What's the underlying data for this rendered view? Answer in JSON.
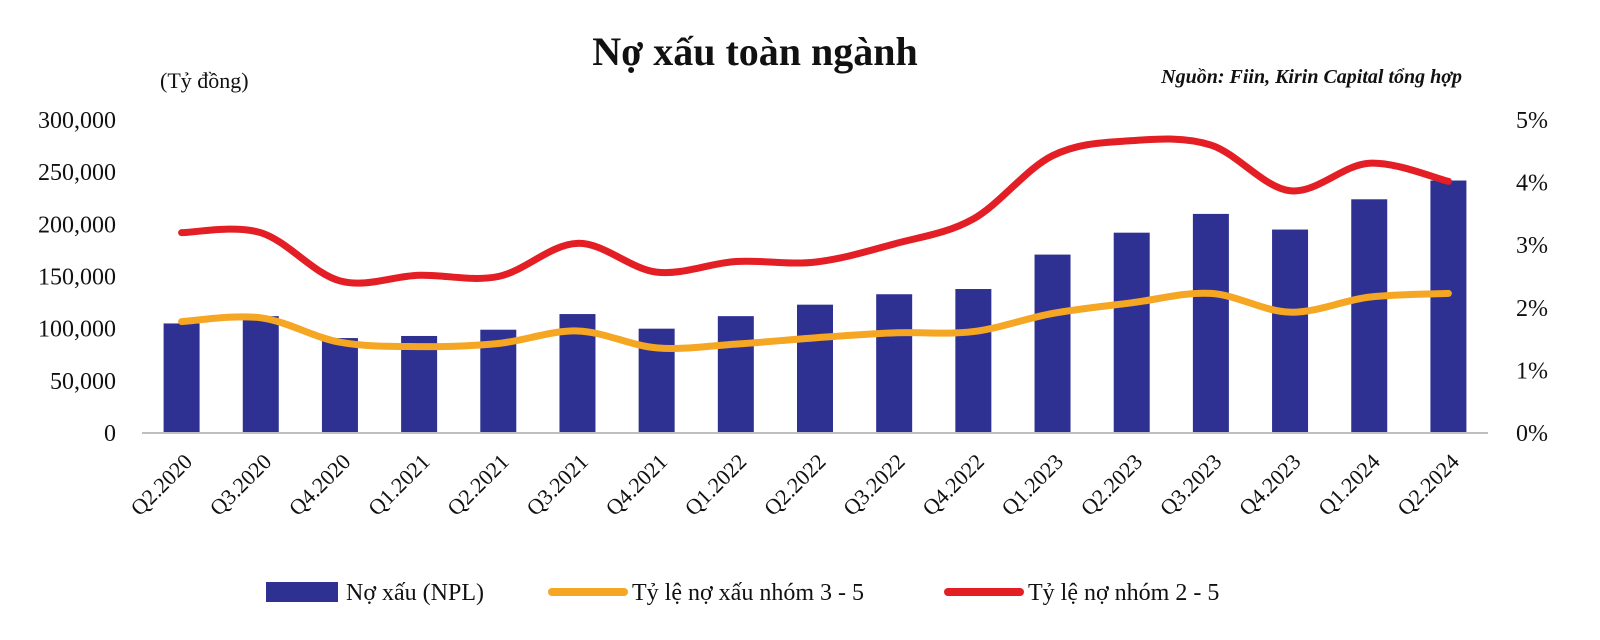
{
  "chart_data": {
    "type": "bar",
    "title": "Nợ xấu toàn ngành",
    "unit_label": "(Tỷ đồng)",
    "source": "Nguồn: Fiin, Kirin Capital tổng hợp",
    "categories": [
      "Q2.2020",
      "Q3.2020",
      "Q4.2020",
      "Q1.2021",
      "Q2.2021",
      "Q3.2021",
      "Q4.2021",
      "Q1.2022",
      "Q2.2022",
      "Q3.2022",
      "Q4.2022",
      "Q1.2023",
      "Q2.2023",
      "Q3.2023",
      "Q4.2023",
      "Q1.2024",
      "Q2.2024"
    ],
    "y_left": {
      "range": [
        0,
        300000
      ],
      "ticks": [
        0,
        50000,
        100000,
        150000,
        200000,
        250000,
        300000
      ],
      "tick_labels": [
        "0",
        "50,000",
        "100,000",
        "150,000",
        "200,000",
        "250,000",
        "300,000"
      ]
    },
    "y_right": {
      "range": [
        0,
        5
      ],
      "ticks": [
        0,
        1,
        2,
        3,
        4,
        5
      ],
      "tick_labels": [
        "0%",
        "1%",
        "2%",
        "3%",
        "4%",
        "5%"
      ]
    },
    "grid": false,
    "legend_position": "bottom",
    "series": [
      {
        "name": "Nợ xấu (NPL)",
        "kind": "bar",
        "axis": "left",
        "color": "#2e3192",
        "values": [
          105000,
          112000,
          91000,
          93000,
          99000,
          114000,
          100000,
          112000,
          123000,
          133000,
          138000,
          171000,
          192000,
          210000,
          195000,
          224000,
          242000
        ]
      },
      {
        "name": "Tỷ lệ nợ xấu nhóm 3 - 5",
        "kind": "line",
        "axis": "right",
        "color": "#f5a623",
        "values": [
          1.78,
          1.84,
          1.45,
          1.38,
          1.43,
          1.63,
          1.36,
          1.42,
          1.52,
          1.6,
          1.62,
          1.91,
          2.08,
          2.23,
          1.93,
          2.17,
          2.23
        ]
      },
      {
        "name": "Tỷ lệ nợ nhóm 2 - 5",
        "kind": "line",
        "axis": "right",
        "color": "#e31e24",
        "values": [
          3.2,
          3.2,
          2.43,
          2.52,
          2.5,
          3.03,
          2.57,
          2.74,
          2.73,
          3.02,
          3.42,
          4.43,
          4.67,
          4.6,
          3.87,
          4.31,
          4.02
        ]
      }
    ]
  }
}
